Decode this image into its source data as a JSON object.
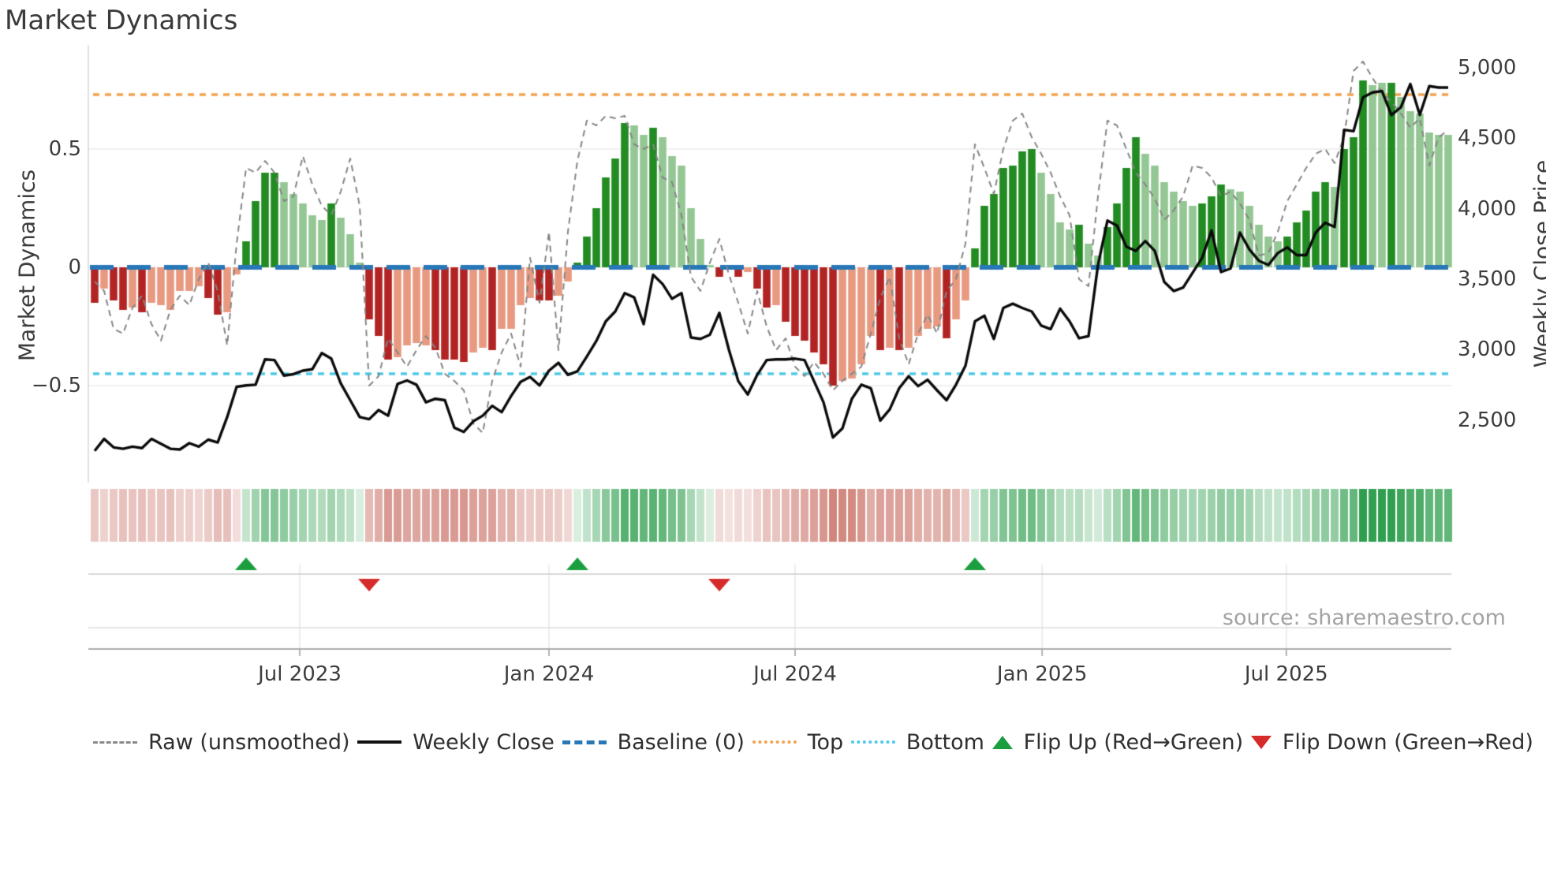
{
  "title": "Market Dynamics",
  "source": "source: sharemaestro.com",
  "left_axis": {
    "label": "Market Dynamics",
    "ticks": [
      {
        "label": "0.5",
        "value": 0.5
      },
      {
        "label": "0",
        "value": 0
      },
      {
        "label": "−0.5",
        "value": -0.5
      }
    ]
  },
  "right_axis": {
    "label": "Weekly Close Price",
    "ticks": [
      {
        "label": "5,000",
        "value": 5000
      },
      {
        "label": "4,500",
        "value": 4500
      },
      {
        "label": "4,000",
        "value": 4000
      },
      {
        "label": "3,500",
        "value": 3500
      },
      {
        "label": "3,000",
        "value": 3000
      },
      {
        "label": "2,500",
        "value": 2500
      }
    ]
  },
  "x_axis": {
    "ticks": [
      {
        "label": "Jul 2023",
        "week": 21.67
      },
      {
        "label": "Jan 2024",
        "week": 48.0
      },
      {
        "label": "Jul 2024",
        "week": 74.0
      },
      {
        "label": "Jan 2025",
        "week": 100.1
      },
      {
        "label": "Jul 2025",
        "week": 125.9
      }
    ]
  },
  "legend": {
    "items": [
      {
        "label": "Raw (unsmoothed)",
        "swatch": "dashed-gray"
      },
      {
        "label": "Weekly Close",
        "swatch": "solid-black"
      },
      {
        "label": "Baseline (0)",
        "swatch": "dashed-blue"
      },
      {
        "label": "Top",
        "swatch": "dotted-orange"
      },
      {
        "label": "Bottom",
        "swatch": "dotted-cyan"
      },
      {
        "label": "Flip Up (Red→Green)",
        "swatch": "tri-up"
      },
      {
        "label": "Flip Down (Green→Red)",
        "swatch": "tri-down"
      }
    ]
  },
  "colors": {
    "bar_dark_green": "#228b22",
    "bar_light_green": "#94c794",
    "bar_dark_red": "#b22423",
    "bar_light_red": "#e89a80",
    "baseline": "#2878b8",
    "top_line": "#f2a44e",
    "bottom_line": "#4ec9e8",
    "raw_line": "#858585",
    "close_line": "#0a0a0a",
    "heat_green": "#2f9e4e",
    "heat_red": "#bc4f42",
    "flip_up": "#1b9e3e",
    "flip_down": "#d62b2b",
    "grid": "#ececec",
    "axis": "#ababab"
  },
  "chart_data": {
    "type": "bar",
    "subtype": "combo-bar-line-heatmap",
    "title": "Market Dynamics",
    "xlabel": "",
    "ylabel_left": "Market Dynamics",
    "ylabel_right": "Weekly Close Price",
    "ylim_left": [
      -0.94,
      0.94
    ],
    "ylim_right": [
      2250,
      5150
    ],
    "weeks": 144,
    "reference_lines": {
      "baseline": 0,
      "top": 0.73,
      "bottom": -0.45
    },
    "flip_markers": [
      {
        "type": "up",
        "week": 16
      },
      {
        "type": "down",
        "week": 29
      },
      {
        "type": "up",
        "week": 51
      },
      {
        "type": "down",
        "week": 66
      },
      {
        "type": "up",
        "week": 93
      }
    ],
    "series": [
      {
        "name": "Market Dynamics (weekly bars)",
        "type": "bar",
        "axis": "left",
        "values": [
          -0.15,
          -0.09,
          -0.14,
          -0.18,
          -0.17,
          -0.19,
          -0.15,
          -0.16,
          -0.18,
          -0.1,
          -0.1,
          -0.08,
          -0.13,
          -0.2,
          -0.19,
          -0.03,
          0.11,
          0.28,
          0.4,
          0.4,
          0.36,
          0.31,
          0.27,
          0.22,
          0.2,
          0.27,
          0.21,
          0.14,
          0.02,
          -0.22,
          -0.29,
          -0.39,
          -0.38,
          -0.33,
          -0.32,
          -0.33,
          -0.35,
          -0.39,
          -0.39,
          -0.4,
          -0.36,
          -0.34,
          -0.35,
          -0.26,
          -0.26,
          -0.16,
          -0.13,
          -0.14,
          -0.14,
          -0.12,
          -0.06,
          0.02,
          0.13,
          0.25,
          0.38,
          0.46,
          0.61,
          0.6,
          0.56,
          0.59,
          0.55,
          0.47,
          0.43,
          0.25,
          0.12,
          0.01,
          -0.04,
          -0.01,
          -0.04,
          -0.02,
          -0.09,
          -0.17,
          -0.16,
          -0.23,
          -0.29,
          -0.31,
          -0.36,
          -0.41,
          -0.5,
          -0.48,
          -0.47,
          -0.41,
          -0.29,
          -0.35,
          -0.34,
          -0.35,
          -0.34,
          -0.29,
          -0.26,
          -0.25,
          -0.3,
          -0.22,
          -0.14,
          0.08,
          0.26,
          0.31,
          0.42,
          0.43,
          0.49,
          0.5,
          0.4,
          0.31,
          0.19,
          0.16,
          0.18,
          0.1,
          0.05,
          0.17,
          0.27,
          0.42,
          0.55,
          0.48,
          0.43,
          0.36,
          0.32,
          0.28,
          0.26,
          0.27,
          0.3,
          0.35,
          0.33,
          0.32,
          0.26,
          0.18,
          0.13,
          0.11,
          0.13,
          0.19,
          0.24,
          0.32,
          0.36,
          0.34,
          0.5,
          0.55,
          0.79,
          0.77,
          0.78,
          0.78,
          0.72,
          0.66,
          0.65,
          0.57,
          0.56,
          0.56
        ],
        "emphasis_dark": [
          1,
          0,
          1,
          1,
          0,
          1,
          0,
          0,
          0,
          0,
          0,
          0,
          1,
          1,
          0,
          0,
          1,
          1,
          1,
          1,
          0,
          0,
          0,
          0,
          0,
          1,
          0,
          0,
          0,
          1,
          1,
          1,
          0,
          0,
          0,
          0,
          1,
          1,
          1,
          1,
          0,
          0,
          1,
          0,
          0,
          0,
          0,
          1,
          1,
          0,
          0,
          1,
          1,
          1,
          1,
          1,
          1,
          0,
          0,
          1,
          0,
          0,
          0,
          0,
          0,
          0,
          1,
          0,
          1,
          0,
          1,
          1,
          0,
          1,
          1,
          1,
          1,
          1,
          1,
          0,
          0,
          0,
          0,
          1,
          0,
          1,
          0,
          0,
          0,
          0,
          1,
          0,
          0,
          1,
          1,
          1,
          1,
          1,
          1,
          1,
          0,
          0,
          0,
          0,
          1,
          0,
          0,
          1,
          1,
          1,
          1,
          0,
          0,
          0,
          0,
          0,
          0,
          1,
          1,
          1,
          0,
          0,
          0,
          0,
          0,
          0,
          1,
          1,
          1,
          1,
          1,
          0,
          1,
          1,
          1,
          0,
          0,
          1,
          0,
          0,
          0,
          0,
          0,
          0
        ]
      },
      {
        "name": "Raw (unsmoothed)",
        "type": "line",
        "style": "dashed",
        "axis": "left",
        "values": [
          -0.06,
          -0.1,
          -0.26,
          -0.28,
          -0.17,
          -0.12,
          -0.24,
          -0.31,
          -0.18,
          -0.12,
          -0.16,
          -0.05,
          0.02,
          -0.1,
          -0.33,
          0.1,
          0.42,
          0.4,
          0.45,
          0.4,
          0.28,
          0.3,
          0.47,
          0.35,
          0.26,
          0.22,
          0.32,
          0.46,
          0.26,
          -0.5,
          -0.46,
          -0.3,
          -0.36,
          -0.42,
          -0.35,
          -0.29,
          -0.34,
          -0.45,
          -0.48,
          -0.52,
          -0.66,
          -0.7,
          -0.48,
          -0.36,
          -0.28,
          -0.42,
          0.04,
          -0.15,
          0.15,
          -0.35,
          0.15,
          0.45,
          0.62,
          0.6,
          0.64,
          0.63,
          0.64,
          0.52,
          0.5,
          0.52,
          0.38,
          0.36,
          0.22,
          -0.04,
          -0.1,
          0.02,
          0.12,
          -0.03,
          -0.15,
          -0.28,
          -0.1,
          -0.25,
          -0.35,
          -0.3,
          -0.42,
          -0.46,
          -0.4,
          -0.45,
          -0.52,
          -0.48,
          -0.45,
          -0.42,
          -0.28,
          -0.13,
          -0.04,
          -0.3,
          -0.41,
          -0.28,
          -0.2,
          -0.28,
          -0.1,
          -0.05,
          0.1,
          0.52,
          0.42,
          0.31,
          0.5,
          0.62,
          0.65,
          0.55,
          0.48,
          0.4,
          0.3,
          0.22,
          -0.05,
          -0.08,
          0.3,
          0.62,
          0.6,
          0.5,
          0.4,
          0.35,
          0.29,
          0.2,
          0.24,
          0.3,
          0.43,
          0.42,
          0.38,
          0.3,
          0.32,
          0.27,
          0.2,
          0.05,
          0.06,
          0.15,
          0.28,
          0.35,
          0.42,
          0.48,
          0.5,
          0.44,
          0.55,
          0.83,
          0.87,
          0.8,
          0.74,
          0.7,
          0.65,
          0.59,
          0.63,
          0.43,
          0.55,
          0.58
        ]
      },
      {
        "name": "Weekly Close",
        "type": "line",
        "style": "solid",
        "axis": "right",
        "values": [
          2280,
          2365,
          2305,
          2295,
          2310,
          2300,
          2365,
          2330,
          2295,
          2290,
          2335,
          2310,
          2360,
          2340,
          2520,
          2735,
          2745,
          2750,
          2930,
          2925,
          2815,
          2825,
          2850,
          2860,
          2975,
          2935,
          2760,
          2640,
          2520,
          2505,
          2570,
          2530,
          2755,
          2780,
          2750,
          2625,
          2650,
          2640,
          2445,
          2415,
          2490,
          2530,
          2600,
          2555,
          2670,
          2770,
          2805,
          2745,
          2850,
          2905,
          2820,
          2845,
          2950,
          3060,
          3200,
          3270,
          3400,
          3370,
          3180,
          3530,
          3465,
          3360,
          3400,
          3085,
          3075,
          3105,
          3260,
          3000,
          2775,
          2680,
          2820,
          2925,
          2930,
          2930,
          2935,
          2925,
          2775,
          2625,
          2375,
          2440,
          2650,
          2750,
          2725,
          2495,
          2575,
          2725,
          2810,
          2740,
          2785,
          2710,
          2640,
          2750,
          2885,
          3200,
          3240,
          3075,
          3295,
          3325,
          3295,
          3270,
          3170,
          3145,
          3290,
          3200,
          3080,
          3095,
          3600,
          3915,
          3880,
          3730,
          3700,
          3770,
          3700,
          3480,
          3415,
          3440,
          3545,
          3650,
          3845,
          3550,
          3575,
          3830,
          3710,
          3630,
          3600,
          3685,
          3725,
          3670,
          3670,
          3830,
          3900,
          3870,
          4560,
          4550,
          4790,
          4825,
          4835,
          4665,
          4720,
          4885,
          4665,
          4870,
          4860,
          4860
        ]
      }
    ],
    "heatmap": {
      "description": "strip below chart; cell color mirrors bar sign, intensity proportional to |value|"
    }
  }
}
